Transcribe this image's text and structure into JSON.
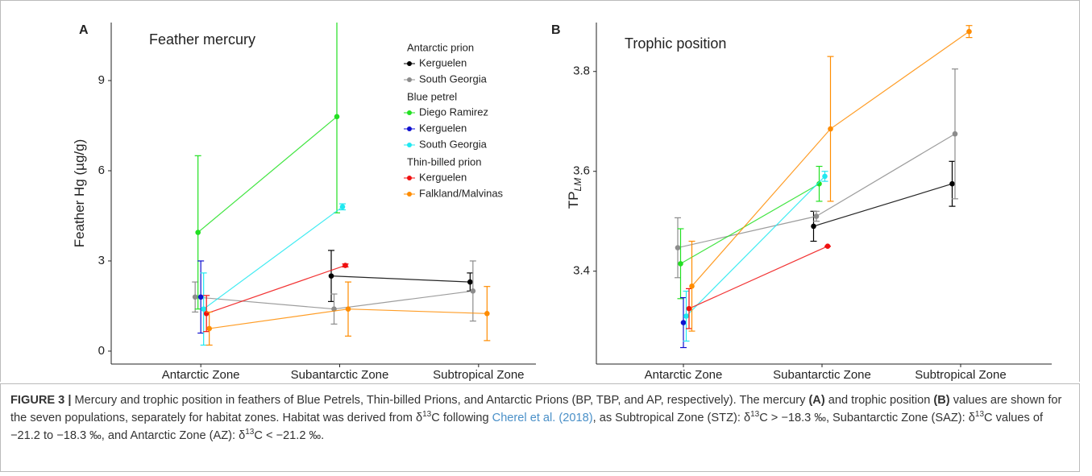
{
  "chart_data": [
    {
      "type": "line",
      "panel": "A",
      "title": "Feather mercury",
      "ylabel": "Feather Hg (µg/g)",
      "categories": [
        "Antarctic Zone",
        "Subantarctic Zone",
        "Subtropical Zone"
      ],
      "ylim": [
        -0.43,
        10.93
      ],
      "yticks": [
        0,
        3,
        6,
        9
      ],
      "legend_groups": [
        {
          "name": "Antarctic prion",
          "series": [
            {
              "name": "Kerguelen",
              "color": "#000000",
              "values": [
                null,
                2.5,
                2.3
              ],
              "errors": [
                null,
                0.85,
                0.3
              ]
            },
            {
              "name": "South Georgia",
              "color": "#8c8c8c",
              "values": [
                1.8,
                1.4,
                2.0
              ],
              "errors": [
                0.5,
                0.5,
                1.0
              ]
            }
          ]
        },
        {
          "name": "Blue petrel",
          "series": [
            {
              "name": "Diego Ramirez",
              "color": "#22e022",
              "values": [
                3.95,
                7.8,
                null
              ],
              "errors": [
                2.55,
                3.2,
                null
              ]
            },
            {
              "name": "Kerguelen",
              "color": "#1010d0",
              "values": [
                1.8,
                null,
                null
              ],
              "errors": [
                1.2,
                null,
                null
              ]
            },
            {
              "name": "South Georgia",
              "color": "#20e8f0",
              "values": [
                1.4,
                4.8,
                null
              ],
              "errors": [
                1.2,
                0.1,
                null
              ]
            }
          ]
        },
        {
          "name": "Thin-billed prion",
          "series": [
            {
              "name": "Kerguelen",
              "color": "#f01010",
              "values": [
                1.25,
                2.85,
                null
              ],
              "errors": [
                0.6,
                0.05,
                null
              ]
            },
            {
              "name": "Falkland/Malvinas",
              "color": "#ff8c00",
              "values": [
                0.75,
                1.4,
                1.25
              ],
              "errors": [
                0.55,
                0.9,
                0.9
              ]
            }
          ]
        }
      ]
    },
    {
      "type": "line",
      "panel": "B",
      "title": "Trophic position",
      "ylabel": "TP",
      "ylabel_sub": "LM",
      "categories": [
        "Antarctic Zone",
        "Subantarctic Zone",
        "Subtropical Zone"
      ],
      "ylim": [
        3.214,
        3.898
      ],
      "yticks": [
        3.4,
        3.6,
        3.8
      ],
      "series": [
        {
          "color": "#000000",
          "values": [
            null,
            3.49,
            3.575
          ],
          "errors": [
            null,
            0.03,
            0.045
          ]
        },
        {
          "color": "#8c8c8c",
          "values": [
            3.447,
            3.51,
            3.675
          ],
          "errors": [
            0.06,
            0.01,
            0.13
          ]
        },
        {
          "color": "#22e022",
          "values": [
            3.415,
            3.575,
            null
          ],
          "errors": [
            0.07,
            0.035,
            null
          ]
        },
        {
          "color": "#1010d0",
          "values": [
            3.297,
            null,
            null
          ],
          "errors": [
            0.05,
            null,
            null
          ]
        },
        {
          "color": "#20e8f0",
          "values": [
            3.31,
            3.59,
            null
          ],
          "errors": [
            0.05,
            0.01,
            null
          ]
        },
        {
          "color": "#f01010",
          "values": [
            3.325,
            3.45,
            null
          ],
          "errors": [
            0.04,
            0,
            null
          ]
        },
        {
          "color": "#ff8c00",
          "values": [
            3.37,
            3.685,
            3.88
          ],
          "errors": [
            0.09,
            0.145,
            0.012
          ]
        }
      ]
    }
  ],
  "caption": [
    {
      "text": "FIGURE 3 | ",
      "style": "bold"
    },
    {
      "text": "Mercury and trophic position in feathers of Blue Petrels, Thin-billed Prions, and Antarctic Prions (BP, TBP, and AP, respectively). The mercury "
    },
    {
      "text": "(A)",
      "style": "bold"
    },
    {
      "text": " and trophic position "
    },
    {
      "text": "(B)",
      "style": "bold"
    },
    {
      "text": " values are shown for the seven populations, separately for habitat zones. Habitat was derived from δ"
    },
    {
      "text": "13",
      "style": "sup"
    },
    {
      "text": "C following "
    },
    {
      "text": "Cherel et al. (2018)",
      "style": "link"
    },
    {
      "text": ", as Subtropical Zone (STZ): δ"
    },
    {
      "text": "13",
      "style": "sup"
    },
    {
      "text": "C > −18.3 ‰, Subantarctic Zone (SAZ): δ"
    },
    {
      "text": "13",
      "style": "sup"
    },
    {
      "text": "C values of −21.2 to −18.3 ‰, and Antarctic Zone (AZ): δ"
    },
    {
      "text": "13",
      "style": "sup"
    },
    {
      "text": "C < −21.2 ‰."
    }
  ]
}
